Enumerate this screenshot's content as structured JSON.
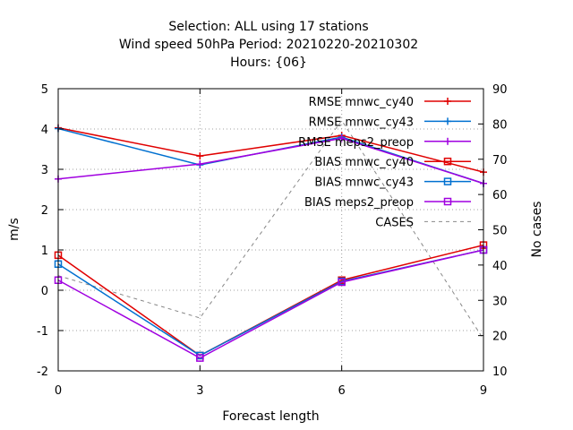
{
  "chart_data": {
    "type": "line",
    "title_lines": [
      "Selection: ALL using    17 stations",
      "Wind speed 50hPa   Period: 20210220-20210302",
      "Hours: {06}"
    ],
    "xlabel": "Forecast length",
    "ylabel": "m/s",
    "y2label": "No cases",
    "x": [
      0,
      3,
      6,
      9
    ],
    "xlim": [
      0,
      9
    ],
    "xticks": [
      0,
      3,
      6,
      9
    ],
    "ylim": [
      -2,
      5
    ],
    "yticks": [
      -2,
      -1,
      0,
      1,
      2,
      3,
      4,
      5
    ],
    "y2lim": [
      10,
      90
    ],
    "y2ticks": [
      10,
      20,
      30,
      40,
      50,
      60,
      70,
      80,
      90
    ],
    "grid": true,
    "legend_position": "top-right",
    "series": [
      {
        "name": "RMSE mnwc_cy40",
        "axis": "y1",
        "marker": "plus",
        "color": "#e00000",
        "values": [
          4.03,
          3.33,
          3.84,
          2.93
        ]
      },
      {
        "name": "RMSE mnwc_cy43",
        "axis": "y1",
        "marker": "plus",
        "color": "#0070d0",
        "values": [
          4.01,
          3.11,
          3.8,
          2.65
        ]
      },
      {
        "name": "RMSE meps2_preop",
        "axis": "y1",
        "marker": "plus",
        "color": "#a000e0",
        "values": [
          2.76,
          3.13,
          3.77,
          2.65
        ]
      },
      {
        "name": "BIAS mnwc_cy40",
        "axis": "y1",
        "marker": "square",
        "color": "#e00000",
        "values": [
          0.87,
          -1.62,
          0.25,
          1.12
        ]
      },
      {
        "name": "BIAS mnwc_cy43",
        "axis": "y1",
        "marker": "square",
        "color": "#0070d0",
        "values": [
          0.65,
          -1.62,
          0.22,
          1.0
        ]
      },
      {
        "name": "BIAS meps2_preop",
        "axis": "y1",
        "marker": "square",
        "color": "#a000e0",
        "values": [
          0.25,
          -1.68,
          0.2,
          1.0
        ]
      },
      {
        "name": "CASES",
        "axis": "y2",
        "marker": "none",
        "dashed": true,
        "color": "#888888",
        "values": [
          37,
          25,
          81,
          19
        ]
      }
    ]
  }
}
